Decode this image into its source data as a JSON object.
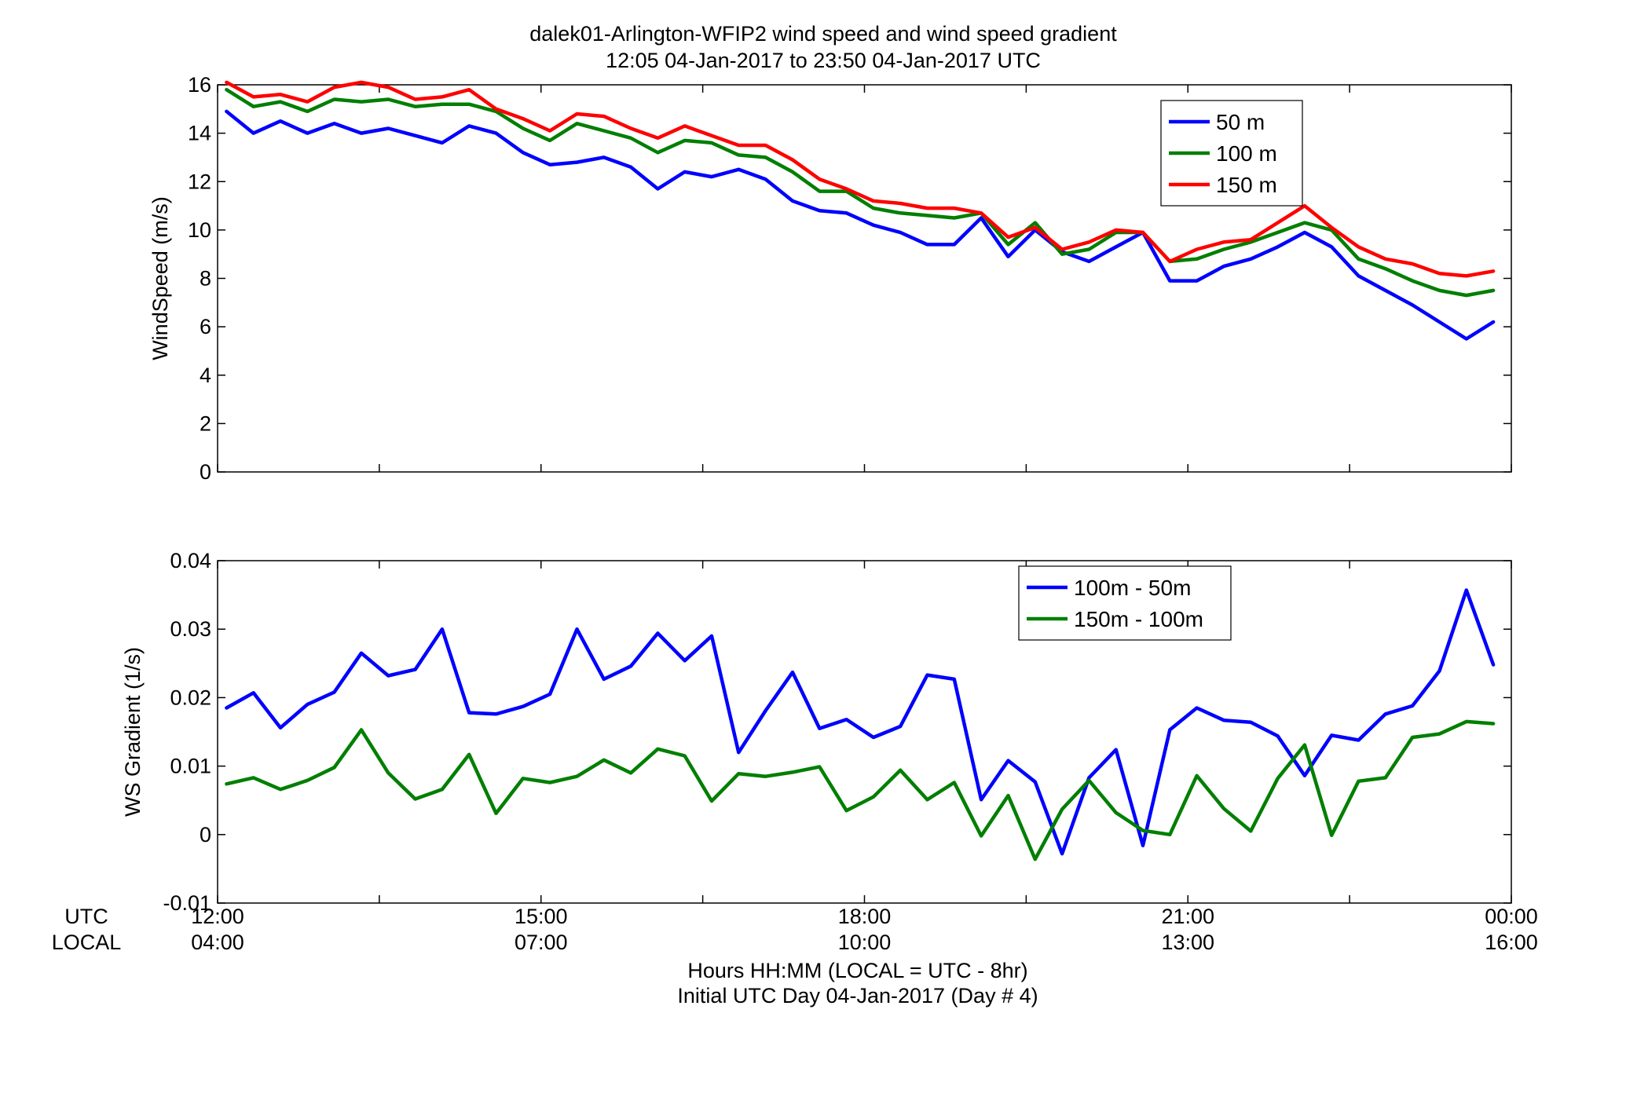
{
  "figure": {
    "title_line1": "dalek01-Arlington-WFIP2  wind speed and wind speed gradient",
    "title_line2": "12:05 04-Jan-2017 to 23:50 04-Jan-2017  UTC",
    "xlabel_line1": "Hours HH:MM  (LOCAL = UTC - 8hr)",
    "xlabel_line2": "Initial UTC Day 04-Jan-2017 (Day # 4)",
    "utc_row_label": "UTC",
    "local_row_label": "LOCAL",
    "x_ticks_utc": [
      "12:00",
      "15:00",
      "18:00",
      "21:00",
      "00:00"
    ],
    "x_ticks_local": [
      "04:00",
      "07:00",
      "10:00",
      "13:00",
      "16:00"
    ],
    "colors": {
      "blue": "#0000ff",
      "green": "#007f00",
      "red": "#ff0000"
    }
  },
  "chart_data": [
    {
      "type": "line",
      "ylabel": "WindSpeed (m/s)",
      "xlim": [
        12.0,
        24.0
      ],
      "ylim": [
        0,
        16
      ],
      "yticks": [
        "0",
        "2",
        "4",
        "6",
        "8",
        "10",
        "12",
        "14",
        "16"
      ],
      "grid": false,
      "legend_position": "top-right",
      "x": [
        12.083,
        12.333,
        12.583,
        12.833,
        13.083,
        13.333,
        13.583,
        13.833,
        14.083,
        14.333,
        14.583,
        14.833,
        15.083,
        15.333,
        15.583,
        15.833,
        16.083,
        16.333,
        16.583,
        16.833,
        17.083,
        17.333,
        17.583,
        17.833,
        18.083,
        18.333,
        18.583,
        18.833,
        19.083,
        19.333,
        19.583,
        19.833,
        20.083,
        20.333,
        20.583,
        20.833,
        21.083,
        21.333,
        21.583,
        21.833,
        22.083,
        22.333,
        22.583,
        22.833,
        23.083,
        23.333,
        23.583,
        23.833
      ],
      "series": [
        {
          "name": "50 m",
          "color": "#0000ff",
          "values": [
            14.9,
            14.0,
            14.5,
            14.0,
            14.4,
            14.0,
            14.2,
            13.9,
            13.6,
            14.3,
            14.0,
            13.2,
            12.7,
            12.8,
            13.0,
            12.6,
            11.7,
            12.4,
            12.2,
            12.5,
            12.1,
            11.2,
            10.8,
            10.7,
            10.2,
            9.9,
            9.4,
            9.4,
            10.5,
            8.9,
            10.0,
            9.1,
            8.7,
            9.3,
            9.9,
            7.9,
            7.9,
            8.5,
            8.8,
            9.3,
            9.9,
            9.3,
            8.1,
            7.5,
            6.9,
            6.2,
            5.5,
            6.2
          ]
        },
        {
          "name": "100 m",
          "color": "#007f00",
          "values": [
            15.8,
            15.1,
            15.3,
            14.9,
            15.4,
            15.3,
            15.4,
            15.1,
            15.2,
            15.2,
            14.9,
            14.2,
            13.7,
            14.4,
            14.1,
            13.8,
            13.2,
            13.7,
            13.6,
            13.1,
            13.0,
            12.4,
            11.6,
            11.6,
            10.9,
            10.7,
            10.6,
            10.5,
            10.7,
            9.4,
            10.3,
            9.0,
            9.2,
            9.9,
            9.9,
            8.7,
            8.8,
            9.2,
            9.5,
            9.9,
            10.3,
            10.0,
            8.8,
            8.4,
            7.9,
            7.5,
            7.3,
            7.5
          ]
        },
        {
          "name": "150 m",
          "color": "#ff0000",
          "values": [
            16.1,
            15.5,
            15.6,
            15.3,
            15.9,
            16.1,
            15.9,
            15.4,
            15.5,
            15.8,
            15.0,
            14.6,
            14.1,
            14.8,
            14.7,
            14.2,
            13.8,
            14.3,
            13.9,
            13.5,
            13.5,
            12.9,
            12.1,
            11.7,
            11.2,
            11.1,
            10.9,
            10.9,
            10.7,
            9.7,
            10.1,
            9.2,
            9.5,
            10.0,
            9.9,
            8.7,
            9.2,
            9.5,
            9.6,
            10.3,
            11.0,
            10.1,
            9.3,
            8.8,
            8.6,
            8.2,
            8.1,
            8.3
          ]
        }
      ]
    },
    {
      "type": "line",
      "ylabel": "WS Gradient (1/s)",
      "xlim": [
        12.0,
        24.0
      ],
      "ylim": [
        -0.01,
        0.04
      ],
      "yticks": [
        "-0.01",
        "0",
        "0.01",
        "0.02",
        "0.03",
        "0.04"
      ],
      "grid": false,
      "legend_position": "top-right",
      "x": [
        12.083,
        12.333,
        12.583,
        12.833,
        13.083,
        13.333,
        13.583,
        13.833,
        14.083,
        14.333,
        14.583,
        14.833,
        15.083,
        15.333,
        15.583,
        15.833,
        16.083,
        16.333,
        16.583,
        16.833,
        17.083,
        17.333,
        17.583,
        17.833,
        18.083,
        18.333,
        18.583,
        18.833,
        19.083,
        19.333,
        19.583,
        19.833,
        20.083,
        20.333,
        20.583,
        20.833,
        21.083,
        21.333,
        21.583,
        21.833,
        22.083,
        22.333,
        22.583,
        22.833,
        23.083,
        23.333,
        23.583,
        23.833
      ],
      "series": [
        {
          "name": "100m - 50m",
          "color": "#0000ff",
          "values": [
            0.0185,
            0.0207,
            0.0156,
            0.019,
            0.0208,
            0.0265,
            0.0232,
            0.0241,
            0.03,
            0.0178,
            0.0176,
            0.0187,
            0.0205,
            0.03,
            0.0227,
            0.0246,
            0.0294,
            0.0254,
            0.029,
            0.012,
            0.0181,
            0.0237,
            0.0155,
            0.0168,
            0.0142,
            0.0158,
            0.0233,
            0.0227,
            0.0051,
            0.0108,
            0.0077,
            -0.0028,
            0.0083,
            0.0124,
            -0.0016,
            0.0153,
            0.0185,
            0.0167,
            0.0164,
            0.0144,
            0.0086,
            0.0145,
            0.0138,
            0.0176,
            0.0188,
            0.0239,
            0.0357,
            0.0248
          ]
        },
        {
          "name": "150m - 100m",
          "color": "#007f00",
          "values": [
            0.0074,
            0.0083,
            0.0066,
            0.0079,
            0.0098,
            0.0153,
            0.009,
            0.0052,
            0.0066,
            0.0117,
            0.0031,
            0.0082,
            0.0076,
            0.0085,
            0.0109,
            0.009,
            0.0125,
            0.0115,
            0.0049,
            0.0089,
            0.0085,
            0.0091,
            0.0099,
            0.0035,
            0.0055,
            0.0094,
            0.0051,
            0.0076,
            -0.0002,
            0.0057,
            -0.0036,
            0.0037,
            0.0079,
            0.0032,
            0.0006,
            0.0,
            0.0086,
            0.0038,
            0.0005,
            0.0082,
            0.0131,
            -0.0001,
            0.0078,
            0.0083,
            0.0142,
            0.0147,
            0.0165,
            0.0162
          ]
        }
      ]
    }
  ]
}
